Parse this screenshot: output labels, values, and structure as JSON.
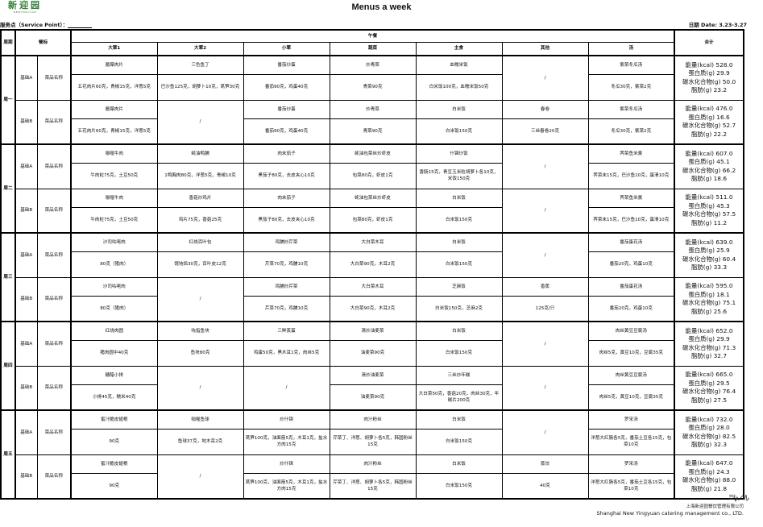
{
  "header": {
    "logo_cn": "新迎园",
    "logo_en": "NEWYINGYUAN",
    "title": "Menus a week",
    "service_point_label": "服务点（Service Point）：",
    "date_label": "日期 Date:  3.23-3.27"
  },
  "table": {
    "col_period": "周期",
    "col_standard": "餐标",
    "col_lunch": "午餐",
    "col_total": "合计",
    "columns": [
      "大荤1",
      "大荤2",
      "小荤",
      "蔬菜",
      "主食",
      "其他",
      "汤"
    ],
    "dish_name_label": "菜品名称",
    "days": [
      {
        "label": "周一",
        "sets": [
          {
            "label": "基础A",
            "dishes": [
              {
                "name": "酱爆肉片",
                "detail": "五花肉片60克，青椒15克，洋葱5克"
              },
              {
                "name": "三色鱼丁",
                "detail": "巴沙鱼125克，胡萝卜10克，莴笋30克"
              },
              {
                "name": "番茄炒蛋",
                "detail": "番茄90克，鸡蛋40克"
              },
              {
                "name": "炒青菜",
                "detail": "青菜90克"
              },
              {
                "name": "血糯米饭",
                "detail": "白米饭100克，血糯米饭50克"
              },
              {
                "slash": "/"
              },
              {
                "name": "紫菜冬瓜汤",
                "detail": "冬瓜30克，紫菜2克"
              }
            ],
            "totals": [
              "能量(kcal) 528.0",
              "蛋白质(g) 29.9",
              "碳水化合物(g) 50.0",
              "脂肪(g) 23.2"
            ]
          },
          {
            "label": "基础B",
            "dishes": [
              {
                "name": "酱爆肉片",
                "detail": "五花肉片60克，青椒15克，洋葱5克"
              },
              {
                "slash": "/"
              },
              {
                "name": "番茄炒蛋",
                "detail": "番茄90克，鸡蛋40克"
              },
              {
                "name": "炒青菜",
                "detail": "青菜90克"
              },
              {
                "name": "白米饭",
                "detail": "白米饭150克"
              },
              {
                "name": "春卷",
                "detail": "三丝春卷20克"
              },
              {
                "name": "紫菜冬瓜汤",
                "detail": "冬瓜30克，紫菜2克"
              }
            ],
            "totals": [
              "能量(kcal) 476.0",
              "蛋白质(g) 16.6",
              "碳水化合物(g) 52.7",
              "脂肪(g) 22.2"
            ]
          }
        ]
      },
      {
        "label": "周二",
        "sets": [
          {
            "label": "基础A",
            "dishes": [
              {
                "name": "咖喱牛肉",
                "detail": "牛肉粒75克，土豆50克"
              },
              {
                "name": "蚝油鸭脯",
                "detail": "1鸭胸肉80克，洋葱5克，青椒10克"
              },
              {
                "name": "肉末茄子",
                "detail": "黑茄子80克，去皮夹心10克"
              },
              {
                "name": "蚝油包菜丝炒虾皮",
                "detail": "包菜80克，虾皮1克"
              },
              {
                "name": "什锦炒饭",
                "detail": "香肠15克，青豆玉米粒胡萝卜各10克，米饭150克"
              },
              {
                "slash": "/"
              },
              {
                "name": "荠菜鱼米羹",
                "detail": "荠菜末15克，巴沙鱼10克，蛋清10克"
              }
            ],
            "totals": [
              "能量(kcal) 607.0",
              "蛋白质(g) 45.1",
              "碳水化合物(g) 66.2",
              "脂肪(g) 18.6"
            ]
          },
          {
            "label": "基础B",
            "dishes": [
              {
                "name": "咖喱牛肉",
                "detail": "牛肉粒75克，土豆50克"
              },
              {
                "name": "香菇炒鸡片",
                "detail": "鸡片75克，香菇25克"
              },
              {
                "name": "肉末茄子",
                "detail": "黑茄子80克，去皮夹心10克"
              },
              {
                "name": "蚝油包菜丝炒虾皮",
                "detail": "包菜80克，虾皮1克"
              },
              {
                "name": "白米饭",
                "detail": "白米饭150克"
              },
              {
                "slash": "/"
              },
              {
                "name": "荠菜鱼米羹",
                "detail": "荠菜末15克，巴沙鱼10克，蛋清10克"
              }
            ],
            "totals": [
              "能量(kcal) 511.0",
              "蛋白质(g) 45.3",
              "碳水化合物(g) 57.5",
              "脂肪(g) 11.2"
            ]
          }
        ]
      },
      {
        "label": "周三",
        "sets": [
          {
            "label": "基础A",
            "dishes": [
              {
                "name": "沙司咕咾肉",
                "detail": "80克（猪肉）"
              },
              {
                "name": "红烧百叶包",
                "detail": "馄饨馅30克，百叶皮12克"
              },
              {
                "name": "鸡脯炒芹菜",
                "detail": "芹菜70克，鸡脯10克"
              },
              {
                "name": "大白菜木耳",
                "detail": "大白菜90克，木耳2克"
              },
              {
                "name": "白米饭",
                "detail": "白米饭150克"
              },
              {
                "slash": "/"
              },
              {
                "name": "番茄蛋花汤",
                "detail": "番茄20克，鸡蛋10克"
              }
            ],
            "totals": [
              "能量(kcal) 639.0",
              "蛋白质(g) 25.9",
              "碳水化合物(g) 60.4",
              "脂肪(g) 33.3"
            ]
          },
          {
            "label": "基础B",
            "dishes": [
              {
                "name": "沙司咕咾肉",
                "detail": "80克（猪肉）"
              },
              {
                "slash": "/"
              },
              {
                "name": "鸡脯炒芹菜",
                "detail": "芹菜70克，鸡脯10克"
              },
              {
                "name": "大白菜木耳",
                "detail": "大白菜90克，木耳2克"
              },
              {
                "name": "芝麻饭",
                "detail": "白米饭150克，芝麻2克"
              },
              {
                "name": "香蕉",
                "detail": "125克/只"
              },
              {
                "name": "番茄蛋花汤",
                "detail": "番茄20克，鸡蛋10克"
              }
            ],
            "totals": [
              "能量(kcal) 595.0",
              "蛋白质(g) 18.1",
              "碳水化合物(g) 75.1",
              "脂肪(g) 25.6"
            ]
          }
        ]
      },
      {
        "label": "周四",
        "sets": [
          {
            "label": "基础A",
            "dishes": [
              {
                "name": "红烧肉圆",
                "detail": "猪肉圆中40克"
              },
              {
                "name": "吮指鱼块",
                "detail": "鱼块80克"
              },
              {
                "name": "三鲜蒸蛋",
                "detail": "鸡蛋50克，黑木耳1克，肉丝5克"
              },
              {
                "name": "清炒油麦菜",
                "detail": "油麦菜90克"
              },
              {
                "name": "白米饭",
                "detail": "白米饭150克"
              },
              {
                "slash": "/"
              },
              {
                "name": "肉丝黄豆豆腐汤",
                "detail": "肉丝5克，黄豆10克，豆腐35克"
              }
            ],
            "totals": [
              "能量(kcal) 652.0",
              "蛋白质(g) 29.9",
              "碳水化合物(g) 71.3",
              "脂肪(g) 32.7"
            ]
          },
          {
            "label": "基础B",
            "dishes": [
              {
                "name": "糖醋小排",
                "detail": "小排45克，糯米40克"
              },
              {
                "slash": "/"
              },
              {
                "slash": "/"
              },
              {
                "name": "清炒油麦菜",
                "detail": "油麦菜90克"
              },
              {
                "name": "三丝炒年糕",
                "detail": "大白菜50克，香菇20克，肉丝30克，年糕片200克"
              },
              {
                "slash": "/"
              },
              {
                "name": "肉丝黄豆豆腐汤",
                "detail": "肉丝5克，黄豆10克，豆腐35克"
              }
            ],
            "totals": [
              "能量(kcal) 665.0",
              "蛋白质(g) 29.5",
              "碳水化合物(g) 76.4",
              "脂肪(g) 27.5"
            ]
          }
        ]
      },
      {
        "label": "周五",
        "sets": [
          {
            "label": "基础A",
            "dishes": [
              {
                "name": "蜜汁脆皮翅根",
                "detail": "90克"
              },
              {
                "name": "咖喱鱼球",
                "detail": "鱼球37克，地木耳2克"
              },
              {
                "name": "炒什锦",
                "detail": "莴笋100克，油面筋5克，木耳1克，盐水方肉15克"
              },
              {
                "name": "肉汁粉丝",
                "detail": "芹菜丁、洋葱、胡萝卜各5克，韩国粉丝15克"
              },
              {
                "name": "白米饭",
                "detail": "白米饭150克"
              },
              {
                "slash": "/"
              },
              {
                "name": "罗宋汤",
                "detail": "洋葱大红肠各5克，番茄土豆各15克，包菜10克"
              }
            ],
            "totals": [
              "能量(kcal) 732.0",
              "蛋白质(g) 28.0",
              "碳水化合物(g) 82.5",
              "脂肪(g) 32.3"
            ]
          },
          {
            "label": "基础B",
            "dishes": [
              {
                "name": "蜜汁脆皮翅根",
                "detail": "90克"
              },
              {
                "slash": "/"
              },
              {
                "name": "炒什锦",
                "detail": "莴笋100克，油面筋5克，木耳1克，盐水方肉15克"
              },
              {
                "name": "肉汁粉丝",
                "detail": "芹菜丁、洋葱、胡萝卜各5克，韩国粉丝15克"
              },
              {
                "name": "白米饭",
                "detail": "白米饭150克"
              },
              {
                "name": "蒸饺",
                "detail": "40克"
              },
              {
                "name": "罗宋汤",
                "detail": "洋葱大红肠各5克，番茄土豆各15克，包菜10克"
              }
            ],
            "totals": [
              "能量(kcal) 647.0",
              "蛋白质(g) 24.3",
              "碳水化合物(g) 88.0",
              "脂肪(g) 21.8"
            ]
          }
        ]
      }
    ]
  },
  "footer": {
    "reviewer_label": "审核：",
    "company_cn": "上海新迎园餐饮管理有限公司",
    "company_en": "Shanghai New Yingyuan catering management co., LTD."
  }
}
